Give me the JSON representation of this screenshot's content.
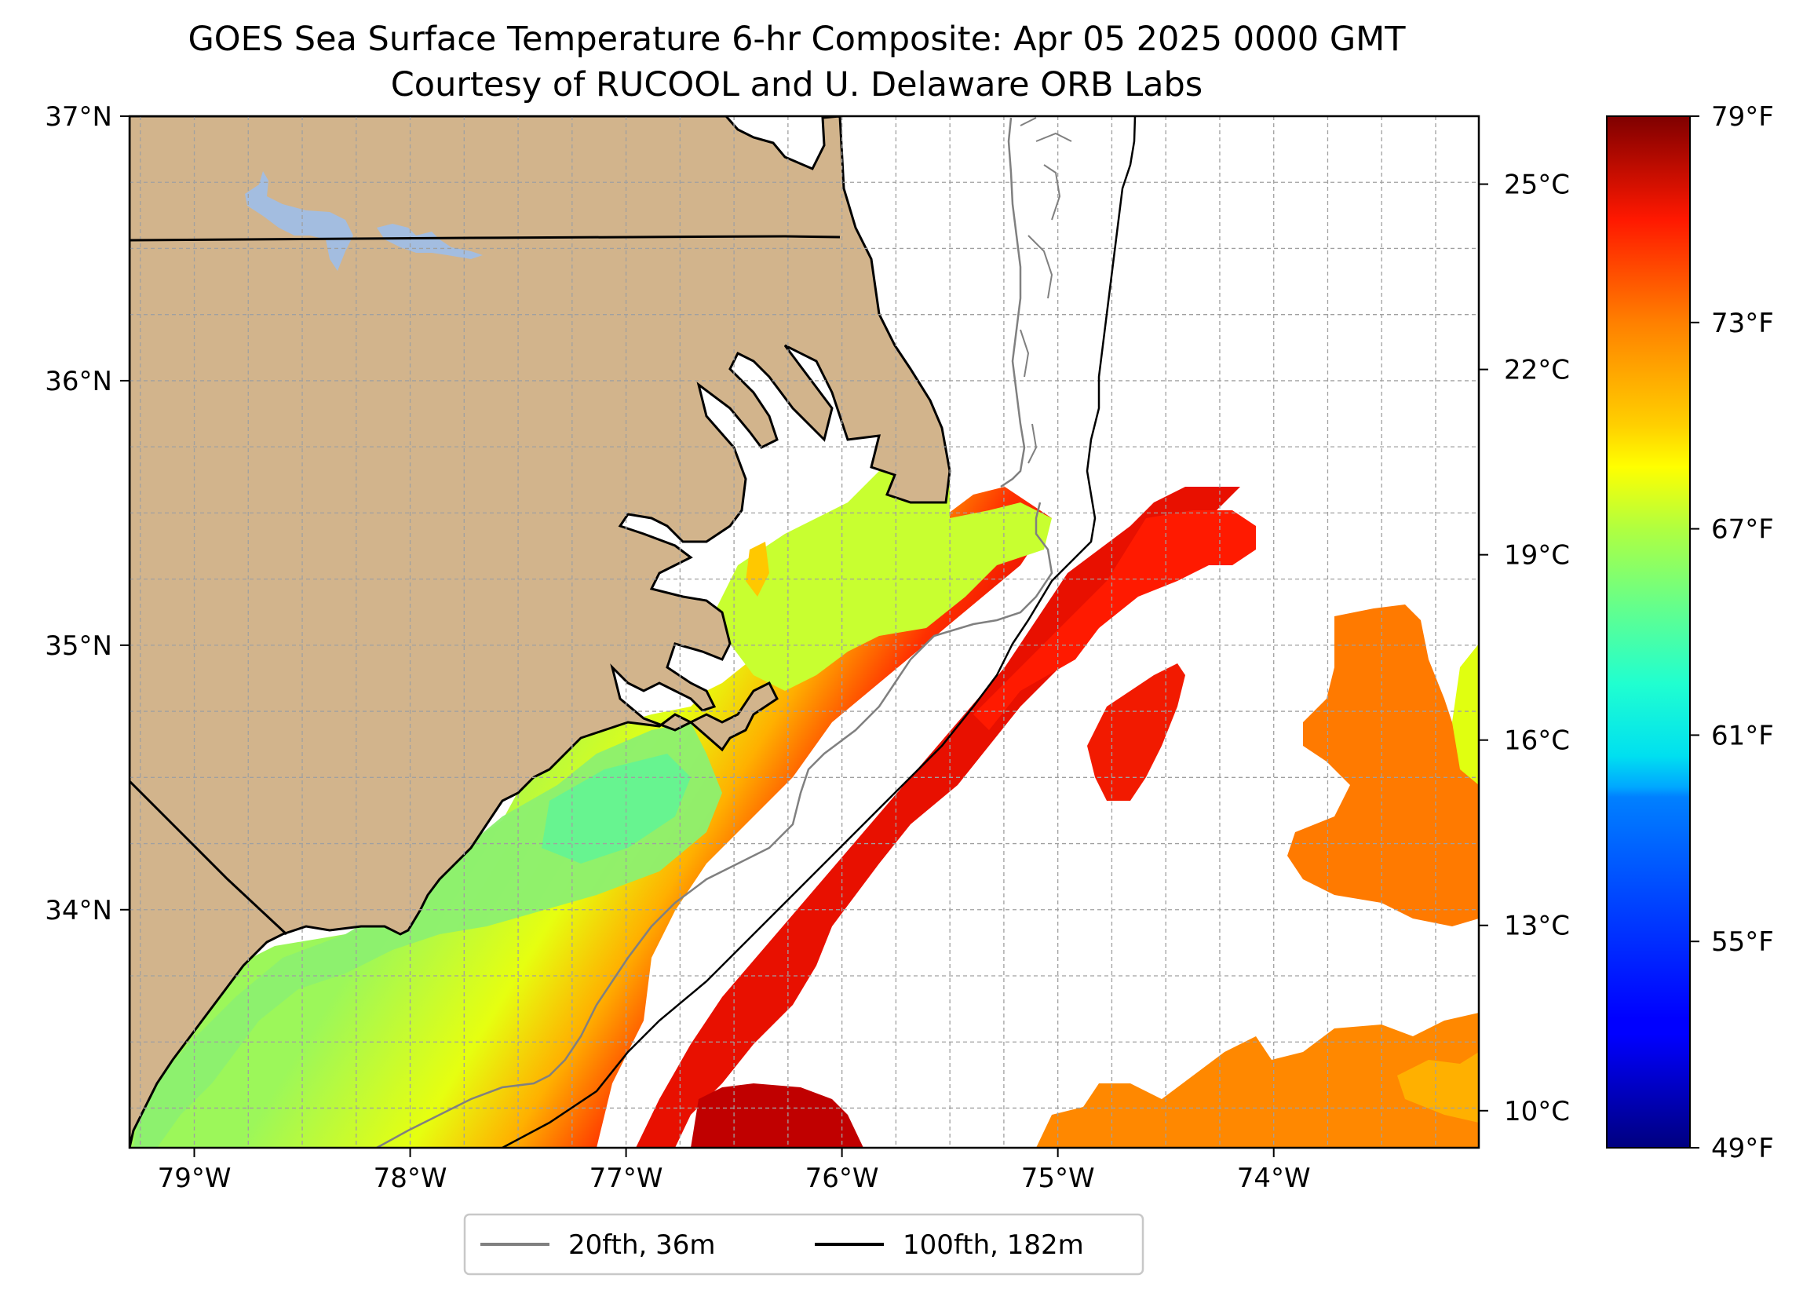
{
  "title": {
    "line1": "GOES Sea Surface Temperature 6-hr Composite: Apr 05 2025 0000 GMT",
    "line2": "Courtesy of RUCOOL and U. Delaware ORB Labs"
  },
  "map": {
    "extent": {
      "lon": [
        -79.3,
        -73.05
      ],
      "lat": [
        33.1,
        37.0
      ]
    },
    "lat_ticks": [
      {
        "value": 37,
        "label": "37°N"
      },
      {
        "value": 36,
        "label": "36°N"
      },
      {
        "value": 35,
        "label": "35°N"
      },
      {
        "value": 34,
        "label": "34°N"
      }
    ],
    "lon_ticks": [
      {
        "value": -79,
        "label": "79°W"
      },
      {
        "value": -78,
        "label": "78°W"
      },
      {
        "value": -77,
        "label": "77°W"
      },
      {
        "value": -76,
        "label": "76°W"
      },
      {
        "value": -75,
        "label": "75°W"
      },
      {
        "value": -74,
        "label": "74°W"
      }
    ],
    "celsius_ticks": [
      {
        "value": 25,
        "label": "25°C"
      },
      {
        "value": 22,
        "label": "22°C"
      },
      {
        "value": 19,
        "label": "19°C"
      },
      {
        "value": 16,
        "label": "16°C"
      },
      {
        "value": 13,
        "label": "13°C"
      },
      {
        "value": 10,
        "label": "10°C"
      }
    ],
    "celsius_range": [
      9.4,
      26.1
    ],
    "grid": true,
    "colors": {
      "land": "#d2b48c",
      "lake": "#a3bde0",
      "coast": "#000000",
      "isobath_20": "#808080",
      "isobath_100": "#000000"
    }
  },
  "colorbar": {
    "range_f": [
      49,
      79
    ],
    "colormap": "jet",
    "ticks": [
      {
        "value": 79,
        "label": "79°F"
      },
      {
        "value": 73,
        "label": "73°F"
      },
      {
        "value": 67,
        "label": "67°F"
      },
      {
        "value": 61,
        "label": "61°F"
      },
      {
        "value": 55,
        "label": "55°F"
      },
      {
        "value": 49,
        "label": "49°F"
      }
    ]
  },
  "legend": {
    "items": [
      {
        "label": "20fth, 36m",
        "color": "#808080"
      },
      {
        "label": "100fth, 182m",
        "color": "#000000"
      }
    ]
  }
}
